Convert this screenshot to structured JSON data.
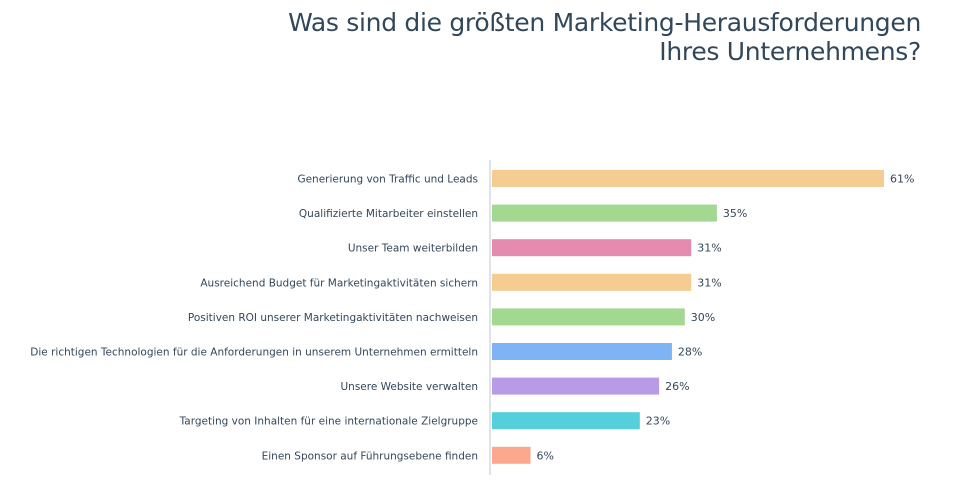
{
  "chart_data": {
    "type": "bar",
    "orientation": "horizontal",
    "title": "Was sind die größten Marketing-Herausforderungen Ihres Unternehmens?",
    "title_lines": [
      "Was sind die größten Marketing-Herausforderungen",
      "Ihres Unternehmens?"
    ],
    "xlabel": "",
    "ylabel": "",
    "xlim": [
      0,
      61
    ],
    "grid": false,
    "legend": "none",
    "value_suffix": "%",
    "categories": [
      "Generierung von Traffic und Leads",
      "Qualifizierte Mitarbeiter einstellen",
      "Unser Team weiterbilden",
      "Ausreichend Budget für Marketingaktivitäten sichern",
      "Positiven ROI unserer Marketingaktivitäten nachweisen",
      "Die richtigen Technologien für die Anforderungen in unserem Unternehmen ermitteln",
      "Unsere Website verwalten",
      "Targeting von Inhalten für eine internationale Zielgruppe",
      "Einen Sponsor auf Führungsebene finden"
    ],
    "values": [
      61,
      35,
      31,
      31,
      30,
      28,
      26,
      23,
      6
    ],
    "data_labels": [
      "61%",
      "35%",
      "31%",
      "31%",
      "30%",
      "28%",
      "26%",
      "23%",
      "6%"
    ],
    "colors": [
      "#f5cd92",
      "#a2d88f",
      "#e68bb0",
      "#f5cd92",
      "#a2d88f",
      "#7eb3f5",
      "#b99ae6",
      "#55cfd9",
      "#fca88f"
    ],
    "axis_color": "#dfe3eb"
  }
}
